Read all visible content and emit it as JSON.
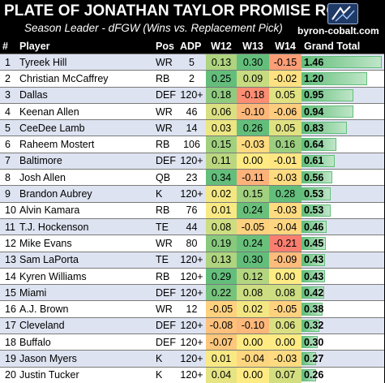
{
  "title": "PLATE OF JONATHAN TAYLOR PROMISE ROI",
  "subtitle": "Season Leader - dFGW (Wins vs. Replacement Pick)",
  "site": "byron-cobalt.com",
  "logo_icon": "byron-cobalt-logo-icon",
  "colors": {
    "positive": "#63be7b",
    "neutral": "#ffeb84",
    "negative": "#f8696b",
    "row_band": "#dde3f1"
  },
  "headers": [
    "#",
    "Player",
    "Pos",
    "ADP",
    "W12",
    "W13",
    "W14",
    "Grand Total"
  ],
  "rows": [
    {
      "rank": "1",
      "player": "Tyreek Hill",
      "pos": "WR",
      "adp": "5",
      "w12": "0.13",
      "w13": "0.30",
      "w14": "-0.15",
      "total": "1.46"
    },
    {
      "rank": "2",
      "player": "Christian McCaffrey",
      "pos": "RB",
      "adp": "2",
      "w12": "0.25",
      "w13": "0.09",
      "w14": "-0.02",
      "total": "1.20"
    },
    {
      "rank": "3",
      "player": "Dallas",
      "pos": "DEF",
      "adp": "120+",
      "w12": "0.18",
      "w13": "-0.18",
      "w14": "0.05",
      "total": "0.95"
    },
    {
      "rank": "4",
      "player": "Keenan Allen",
      "pos": "WR",
      "adp": "46",
      "w12": "0.06",
      "w13": "-0.10",
      "w14": "-0.06",
      "total": "0.94"
    },
    {
      "rank": "5",
      "player": "CeeDee Lamb",
      "pos": "WR",
      "adp": "14",
      "w12": "0.03",
      "w13": "0.26",
      "w14": "0.05",
      "total": "0.83"
    },
    {
      "rank": "6",
      "player": "Raheem Mostert",
      "pos": "RB",
      "adp": "106",
      "w12": "0.15",
      "w13": "-0.03",
      "w14": "0.16",
      "total": "0.64"
    },
    {
      "rank": "7",
      "player": "Baltimore",
      "pos": "DEF",
      "adp": "120+",
      "w12": "0.11",
      "w13": "0.00",
      "w14": "-0.01",
      "total": "0.61"
    },
    {
      "rank": "8",
      "player": "Josh Allen",
      "pos": "QB",
      "adp": "23",
      "w12": "0.34",
      "w13": "-0.11",
      "w14": "-0.03",
      "total": "0.56"
    },
    {
      "rank": "9",
      "player": "Brandon Aubrey",
      "pos": "K",
      "adp": "120+",
      "w12": "0.02",
      "w13": "0.15",
      "w14": "0.28",
      "total": "0.53"
    },
    {
      "rank": "10",
      "player": "Alvin Kamara",
      "pos": "RB",
      "adp": "76",
      "w12": "0.01",
      "w13": "0.24",
      "w14": "-0.03",
      "total": "0.53"
    },
    {
      "rank": "11",
      "player": "T.J. Hockenson",
      "pos": "TE",
      "adp": "44",
      "w12": "0.08",
      "w13": "-0.05",
      "w14": "-0.04",
      "total": "0.46"
    },
    {
      "rank": "12",
      "player": "Mike Evans",
      "pos": "WR",
      "adp": "80",
      "w12": "0.19",
      "w13": "0.24",
      "w14": "-0.21",
      "total": "0.45"
    },
    {
      "rank": "13",
      "player": "Sam LaPorta",
      "pos": "TE",
      "adp": "120+",
      "w12": "0.13",
      "w13": "0.30",
      "w14": "-0.09",
      "total": "0.43"
    },
    {
      "rank": "14",
      "player": "Kyren Williams",
      "pos": "RB",
      "adp": "120+",
      "w12": "0.29",
      "w13": "0.12",
      "w14": "0.00",
      "total": "0.43"
    },
    {
      "rank": "15",
      "player": "Miami",
      "pos": "DEF",
      "adp": "120+",
      "w12": "0.22",
      "w13": "0.08",
      "w14": "0.08",
      "total": "0.42"
    },
    {
      "rank": "16",
      "player": "A.J. Brown",
      "pos": "WR",
      "adp": "12",
      "w12": "-0.05",
      "w13": "0.02",
      "w14": "-0.05",
      "total": "0.38"
    },
    {
      "rank": "17",
      "player": "Cleveland",
      "pos": "DEF",
      "adp": "120+",
      "w12": "-0.08",
      "w13": "-0.10",
      "w14": "0.06",
      "total": "0.32"
    },
    {
      "rank": "18",
      "player": "Buffalo",
      "pos": "DEF",
      "adp": "120+",
      "w12": "-0.07",
      "w13": "0.00",
      "w14": "0.00",
      "total": "0.30"
    },
    {
      "rank": "19",
      "player": "Jason Myers",
      "pos": "K",
      "adp": "120+",
      "w12": "0.01",
      "w13": "-0.04",
      "w14": "-0.03",
      "total": "0.27"
    },
    {
      "rank": "20",
      "player": "Justin Tucker",
      "pos": "K",
      "adp": "120+",
      "w12": "0.04",
      "w13": "0.00",
      "w14": "0.07",
      "total": "0.26"
    }
  ]
}
